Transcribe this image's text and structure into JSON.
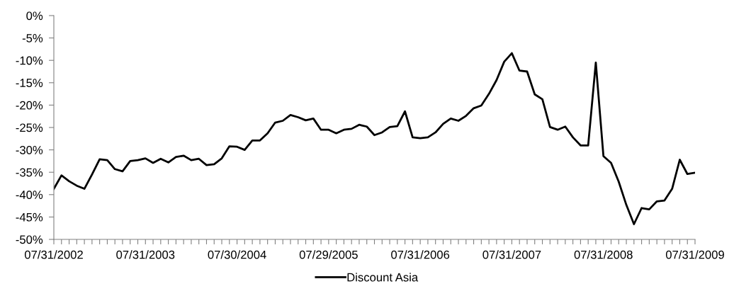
{
  "chart_data": {
    "type": "line",
    "categories": [
      "07/31/2002",
      null,
      null,
      null,
      null,
      null,
      null,
      null,
      null,
      null,
      null,
      null,
      "07/31/2003",
      null,
      null,
      null,
      null,
      null,
      null,
      null,
      null,
      null,
      null,
      null,
      "07/30/2004",
      null,
      null,
      null,
      null,
      null,
      null,
      null,
      null,
      null,
      null,
      null,
      "07/29/2005",
      null,
      null,
      null,
      null,
      null,
      null,
      null,
      null,
      null,
      null,
      null,
      "07/31/2006",
      null,
      null,
      null,
      null,
      null,
      null,
      null,
      null,
      null,
      null,
      null,
      "07/31/2007",
      null,
      null,
      null,
      null,
      null,
      null,
      null,
      null,
      null,
      null,
      null,
      "07/31/2008",
      null,
      null,
      null,
      null,
      null,
      null,
      null,
      null,
      null,
      null,
      null,
      "07/31/2009"
    ],
    "series": [
      {
        "name": "Discount Asia",
        "color": "#000000",
        "values": [
          -38.7,
          -35.7,
          -37.0,
          -38.0,
          -38.7,
          -35.5,
          -32.1,
          -32.3,
          -34.3,
          -34.8,
          -32.5,
          -32.3,
          -31.9,
          -32.9,
          -32.0,
          -32.8,
          -31.6,
          -31.3,
          -32.3,
          -32.0,
          -33.4,
          -33.2,
          -31.9,
          -29.2,
          -29.3,
          -30.0,
          -27.9,
          -27.9,
          -26.3,
          -23.9,
          -23.5,
          -22.2,
          -22.7,
          -23.4,
          -23.0,
          -25.5,
          -25.5,
          -26.3,
          -25.5,
          -25.3,
          -24.4,
          -24.8,
          -26.7,
          -26.1,
          -24.9,
          -24.7,
          -21.4,
          -27.2,
          -27.4,
          -27.2,
          -26.1,
          -24.2,
          -23.0,
          -23.5,
          -22.4,
          -20.7,
          -20.1,
          -17.5,
          -14.4,
          -10.3,
          -8.4,
          -12.3,
          -12.5,
          -17.6,
          -18.7,
          -24.9,
          -25.5,
          -24.8,
          -27.2,
          -29.0,
          -29.0,
          -10.5,
          -31.4,
          -32.9,
          -37.1,
          -42.3,
          -46.6,
          -43.0,
          -43.3,
          -41.5,
          -41.3,
          -38.7,
          -32.2,
          -35.4,
          -35.1
        ]
      }
    ],
    "ylim": [
      -50,
      0
    ],
    "yticks": [
      {
        "value": -50,
        "label": "-50%"
      },
      {
        "value": -45,
        "label": "-45%"
      },
      {
        "value": -40,
        "label": "-40%"
      },
      {
        "value": -35,
        "label": "-35%"
      },
      {
        "value": -30,
        "label": "-30%"
      },
      {
        "value": -25,
        "label": "-25%"
      },
      {
        "value": -20,
        "label": "-20%"
      },
      {
        "value": -15,
        "label": "-15%"
      },
      {
        "value": -10,
        "label": "-10%"
      },
      {
        "value": -5,
        "label": "-5%"
      },
      {
        "value": 0,
        "label": "0%"
      }
    ],
    "grid": false,
    "legend": "bottom",
    "marker": "none",
    "line_style": "solid"
  }
}
